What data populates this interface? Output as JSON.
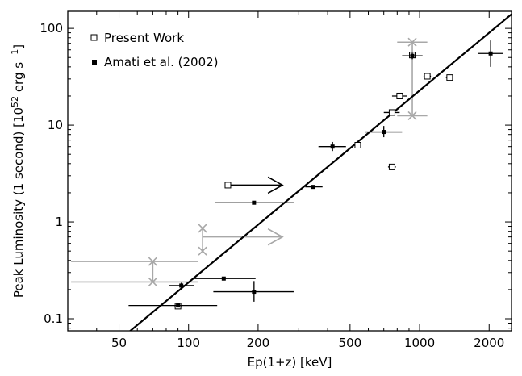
{
  "chart_data": {
    "type": "scatter",
    "xlabel": "Ep(1+z) [keV]",
    "ylabel_main": "Peak Luminosity (1 second) [10",
    "ylabel_exp": "52",
    "ylabel_unit": " erg s",
    "ylabel_unit_exp": "−1",
    "ylabel_close": "]",
    "xscale": "log",
    "yscale": "log",
    "xlim": [
      30,
      2500
    ],
    "ylim": [
      0.075,
      150
    ],
    "xticks": [
      {
        "value": 50,
        "label": "50"
      },
      {
        "value": 100,
        "label": "100"
      },
      {
        "value": 200,
        "label": "200"
      },
      {
        "value": 500,
        "label": "500"
      },
      {
        "value": 1000,
        "label": "1000"
      },
      {
        "value": 2000,
        "label": "2000"
      }
    ],
    "yticks": [
      {
        "value": 0.1,
        "label": "0.1"
      },
      {
        "value": 1,
        "label": "1"
      },
      {
        "value": 10,
        "label": "10"
      },
      {
        "value": 100,
        "label": "100"
      }
    ],
    "legend": {
      "placement": "top-left",
      "entries": [
        {
          "label": "Present Work",
          "marker": "open-square"
        },
        {
          "label": "Amati et al. (2002)",
          "marker": "filled-square"
        }
      ]
    },
    "fit_line": {
      "x": [
        50,
        2500
      ],
      "y": [
        0.06,
        140
      ],
      "color": "#000000"
    },
    "series": [
      {
        "name": "Present Work",
        "marker": "open-square",
        "points": [
          {
            "x": 90,
            "y": 0.135,
            "xerr": [
              87,
              93
            ],
            "yerr": [
              0.128,
              0.142
            ]
          },
          {
            "x": 148,
            "y": 2.4,
            "xerr": [
              144,
              152
            ],
            "yerr": [
              2.3,
              2.5
            ]
          },
          {
            "x": 540,
            "y": 6.2,
            "xerr": [
              520,
              560
            ],
            "yerr": [
              5.9,
              6.5
            ]
          },
          {
            "x": 760,
            "y": 3.7,
            "xerr": [
              730,
              790
            ],
            "yerr": [
              3.5,
              3.9
            ]
          },
          {
            "x": 760,
            "y": 13.5,
            "xerr": [
              700,
              820
            ],
            "yerr": [
              12.8,
              14.2
            ]
          },
          {
            "x": 820,
            "y": 20,
            "xerr": [
              760,
              880
            ],
            "yerr": [
              19,
              21
            ]
          },
          {
            "x": 930,
            "y": 53,
            "xerr": [
              905,
              955
            ],
            "yerr": [
              49,
              57
            ]
          },
          {
            "x": 1080,
            "y": 32,
            "xerr": [
              1040,
              1120
            ],
            "yerr": [
              30,
              34
            ]
          },
          {
            "x": 1350,
            "y": 31,
            "xerr": [
              1300,
              1400
            ],
            "yerr": [
              29,
              33
            ]
          }
        ]
      },
      {
        "name": "Amati et al. (2002)",
        "marker": "filled-square",
        "points": [
          {
            "x": 93,
            "y": 0.22,
            "xerr": [
              82,
              106
            ],
            "yerr": [
              0.205,
              0.235
            ]
          },
          {
            "x": 142,
            "y": 0.26,
            "xerr": [
              105,
              195
            ],
            "yerr": [
              0.25,
              0.27
            ]
          },
          {
            "x": 192,
            "y": 0.19,
            "xerr": [
              128,
              285
            ],
            "yerr": [
              0.15,
              0.245
            ]
          },
          {
            "x": 90,
            "y": 0.137,
            "xerr": [
              55,
              133
            ],
            "yerr": [
              0.135,
              0.139
            ]
          },
          {
            "x": 192,
            "y": 1.58,
            "xerr": [
              130,
              285
            ],
            "yerr": [
              1.52,
              1.64
            ]
          },
          {
            "x": 345,
            "y": 2.3,
            "xerr": [
              320,
              380
            ],
            "yerr": [
              2.22,
              2.38
            ]
          },
          {
            "x": 420,
            "y": 6.0,
            "xerr": [
              365,
              480
            ],
            "yerr": [
              5.4,
              6.7
            ]
          },
          {
            "x": 700,
            "y": 8.5,
            "xerr": [
              580,
              840
            ],
            "yerr": [
              7.5,
              9.8
            ]
          },
          {
            "x": 930,
            "y": 52,
            "xerr": [
              840,
              1030
            ],
            "yerr": [
              48,
              56
            ]
          },
          {
            "x": 2030,
            "y": 55,
            "xerr": [
              1790,
              2300
            ],
            "yerr": [
              40,
              75
            ]
          }
        ]
      }
    ],
    "limits_black": [
      {
        "x": 148,
        "y": 2.4,
        "x_to": 255
      }
    ],
    "limits_gray": [
      {
        "kind": "bracket",
        "x": 70,
        "y_low": 0.24,
        "y_high": 0.39,
        "x_from": 31,
        "x_to": 110
      },
      {
        "kind": "bracket",
        "x": 930,
        "y_low": 12.5,
        "y_high": 72,
        "x_from": 800,
        "x_to": 1080
      },
      {
        "kind": "lowerlimit",
        "x": 115,
        "y_low": 0.5,
        "y_high": 0.86,
        "y_mid": 0.7,
        "x_to": 255
      }
    ],
    "gray_color": "#a8a8a8"
  }
}
